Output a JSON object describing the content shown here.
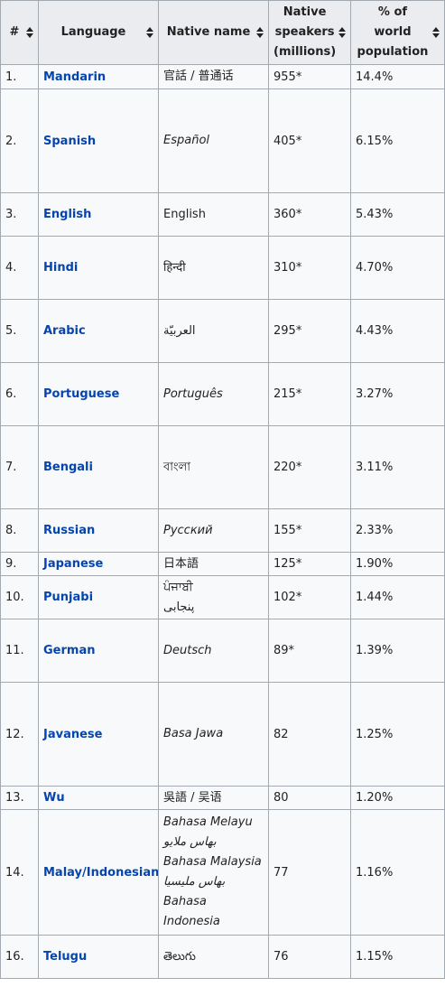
{
  "headers": {
    "rank": "#",
    "language": "Language",
    "native_name": "Native name",
    "speakers_l1": "Native",
    "speakers_l2": "speakers",
    "speakers_l3": "(millions)",
    "pct_l1": "% of",
    "pct_l2": "world",
    "pct_l3": "population"
  },
  "sort_icon": "sort-arrows-icon",
  "colors": {
    "link": "#0645ad",
    "header_bg": "#eaecf0",
    "cell_bg": "#f8f9fa",
    "border": "#a2a9b1"
  },
  "rows": [
    {
      "rank": "1.",
      "language": "Mandarin",
      "native": [
        "官話 / 普通话"
      ],
      "italic": false,
      "speakers": "955*",
      "percent": "14.4%"
    },
    {
      "rank": "2.",
      "language": "Spanish",
      "native": [
        "Español"
      ],
      "italic": true,
      "speakers": "405*",
      "percent": "6.15%"
    },
    {
      "rank": "3.",
      "language": "English",
      "native": [
        "English"
      ],
      "italic": false,
      "speakers": "360*",
      "percent": "5.43%"
    },
    {
      "rank": "4.",
      "language": "Hindi",
      "native": [
        "हिन्दी"
      ],
      "italic": false,
      "speakers": "310*",
      "percent": "4.70%"
    },
    {
      "rank": "5.",
      "language": "Arabic",
      "native": [
        "العربيّة"
      ],
      "italic": false,
      "speakers": "295*",
      "percent": "4.43%"
    },
    {
      "rank": "6.",
      "language": "Portuguese",
      "native": [
        "Português"
      ],
      "italic": true,
      "speakers": "215*",
      "percent": "3.27%"
    },
    {
      "rank": "7.",
      "language": "Bengali",
      "native": [
        "বাংলা"
      ],
      "italic": false,
      "speakers": "220*",
      "percent": "3.11%"
    },
    {
      "rank": "8.",
      "language": "Russian",
      "native": [
        "Русский"
      ],
      "italic": true,
      "speakers": "155*",
      "percent": "2.33%"
    },
    {
      "rank": "9.",
      "language": "Japanese",
      "native": [
        "日本語"
      ],
      "italic": false,
      "speakers": "125*",
      "percent": "1.90%"
    },
    {
      "rank": "10.",
      "language": "Punjabi",
      "native": [
        "ਪੰਜਾਬੀ",
        "پنجابی"
      ],
      "italic": false,
      "speakers": "102*",
      "percent": "1.44%"
    },
    {
      "rank": "11.",
      "language": "German",
      "native": [
        "Deutsch"
      ],
      "italic": true,
      "speakers": "89*",
      "percent": "1.39%"
    },
    {
      "rank": "12.",
      "language": "Javanese",
      "native": [
        "Basa Jawa"
      ],
      "italic": true,
      "speakers": "82",
      "percent": "1.25%"
    },
    {
      "rank": "13.",
      "language": "Wu",
      "native": [
        "吳語 / 吴语"
      ],
      "italic": false,
      "speakers": "80",
      "percent": "1.20%"
    },
    {
      "rank": "14.",
      "language": "Malay/Indonesian",
      "native": [
        "Bahasa Melayu",
        "بهاس ملايو",
        "Bahasa Malaysia",
        "بهاس مليسيا",
        "Bahasa",
        "Indonesia"
      ],
      "italic": true,
      "speakers": "77",
      "percent": "1.16%"
    },
    {
      "rank": "16.",
      "language": "Telugu",
      "native": [
        "తెలుగు"
      ],
      "italic": false,
      "speakers": "76",
      "percent": "1.15%"
    }
  ]
}
